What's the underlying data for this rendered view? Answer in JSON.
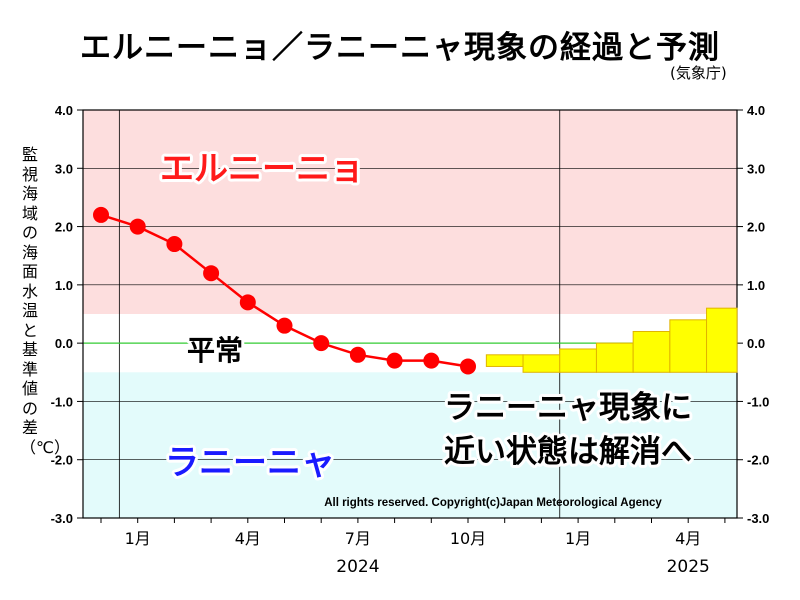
{
  "title": "エルニーニョ／ラニーニャ現象の経過と予測",
  "source": "(気象庁)",
  "copyright": "All rights reserved. Copyright(c)Japan Meteorological Agency",
  "chart_data": {
    "type": "line",
    "ylabel": "監視海域の海面水温と基準値の差（℃）",
    "ylim": [
      -3.0,
      4.0
    ],
    "y_ticks": [
      "4.0",
      "3.0",
      "2.0",
      "1.0",
      "0.0",
      "-1.0",
      "-2.0",
      "-3.0"
    ],
    "x_tick_labels": [
      "1月",
      "4月",
      "7月",
      "10月",
      "1月",
      "4月"
    ],
    "year_labels": [
      "2024",
      "2025"
    ],
    "zones": {
      "el_nino_label": "エルニーニョ",
      "normal_label": "平常",
      "la_nina_label": "ラニーニャ",
      "el_nino_threshold": 0.5,
      "la_nina_threshold": -0.5
    },
    "observed": {
      "x": [
        "2023-12",
        "2024-01",
        "2024-02",
        "2024-03",
        "2024-04",
        "2024-05",
        "2024-06",
        "2024-07",
        "2024-08",
        "2024-09",
        "2024-10"
      ],
      "values": [
        2.2,
        2.0,
        1.7,
        1.2,
        0.7,
        0.3,
        0.0,
        -0.2,
        -0.3,
        -0.3,
        -0.4
      ]
    },
    "forecast": {
      "x": [
        "2024-11",
        "2024-12",
        "2025-01",
        "2025-02",
        "2025-03",
        "2025-04",
        "2025-05"
      ],
      "upper": [
        -0.2,
        -0.2,
        -0.1,
        0.0,
        0.2,
        0.4,
        0.6
      ],
      "lower": [
        -0.4,
        -0.5,
        -0.5,
        -0.5,
        -0.5,
        -0.5,
        -0.5
      ]
    },
    "annotation": [
      "ラニーニャ現象に",
      "近い状態は解消へ"
    ],
    "colors": {
      "el_nino_zone": "#fddede",
      "normal_zone": "#ffffff",
      "la_nina_zone": "#e3fbfb",
      "observed": "#ff0000",
      "forecast_box": "#ffff00",
      "forecast_border": "#e0b400",
      "zero_line": "#33cc33",
      "el_nino_text": "#ff1a1a",
      "la_nina_text": "#1a1aff"
    }
  }
}
